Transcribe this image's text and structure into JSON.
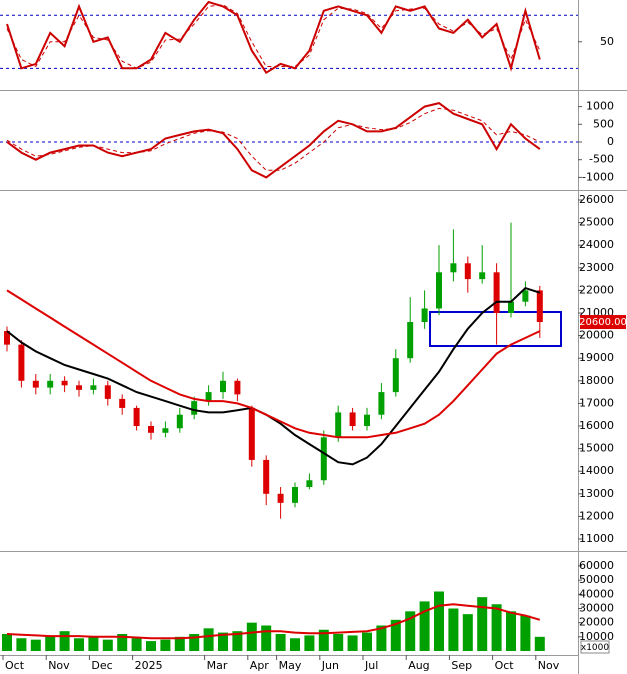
{
  "chart_data": [
    {
      "type": "line",
      "series": [
        {
          "color": "#cc0000",
          "style": "solid",
          "values": [
            70,
            20,
            25,
            60,
            45,
            90,
            50,
            55,
            20,
            20,
            30,
            60,
            50,
            75,
            95,
            90,
            80,
            40,
            15,
            25,
            20,
            40,
            85,
            90,
            85,
            80,
            60,
            90,
            85,
            90,
            65,
            60,
            75,
            55,
            70,
            20,
            85,
            30
          ]
        },
        {
          "color": "#cc0000",
          "style": "dashed",
          "values": [
            65,
            30,
            22,
            50,
            50,
            80,
            55,
            52,
            28,
            20,
            27,
            52,
            53,
            70,
            90,
            92,
            82,
            50,
            22,
            22,
            22,
            35,
            75,
            88,
            87,
            82,
            65,
            85,
            87,
            88,
            70,
            62,
            72,
            58,
            65,
            30,
            75,
            40
          ]
        }
      ],
      "ylim": [
        0,
        95
      ],
      "yticks": [
        50
      ],
      "levels": [
        80,
        20
      ]
    },
    {
      "type": "line",
      "series": [
        {
          "color": "#cc0000",
          "style": "solid",
          "values": [
            0,
            -300,
            -500,
            -300,
            -200,
            -100,
            -100,
            -300,
            -400,
            -300,
            -200,
            100,
            200,
            300,
            350,
            250,
            -200,
            -800,
            -1000,
            -700,
            -400,
            -100,
            300,
            600,
            500,
            300,
            300,
            400,
            700,
            1000,
            1100,
            800,
            650,
            500,
            -200,
            500,
            100,
            -200
          ]
        },
        {
          "color": "#cc0000",
          "style": "dashed",
          "values": [
            50,
            -200,
            -400,
            -350,
            -250,
            -150,
            -100,
            -200,
            -300,
            -300,
            -250,
            -50,
            100,
            250,
            320,
            280,
            100,
            -400,
            -800,
            -800,
            -600,
            -300,
            0,
            400,
            500,
            400,
            350,
            380,
            550,
            800,
            950,
            900,
            750,
            600,
            200,
            300,
            200,
            0
          ]
        }
      ],
      "ylim": [
        -1300,
        1300
      ],
      "yticks": [
        -1000,
        -500,
        0,
        500,
        1000
      ],
      "levels": [
        0
      ]
    },
    {
      "type": "candlestick",
      "open": [
        20200,
        19600,
        18000,
        17700,
        18000,
        17800,
        17600,
        17800,
        17200,
        16800,
        16000,
        15700,
        15900,
        16500,
        17100,
        17500,
        18000,
        16800,
        14500,
        13000,
        12600,
        13300,
        13600,
        15500,
        16600,
        16000,
        16500,
        17500,
        19000,
        20600,
        21200,
        22800,
        23200,
        22500,
        22800,
        21000,
        21500,
        22000
      ],
      "high": [
        20400,
        19800,
        18300,
        18300,
        18200,
        18000,
        18100,
        18000,
        17400,
        16900,
        16200,
        16200,
        16800,
        17300,
        17800,
        18400,
        18100,
        16900,
        14700,
        13300,
        13500,
        13900,
        15800,
        16900,
        16800,
        16800,
        17900,
        19400,
        21700,
        22000,
        24000,
        24700,
        23500,
        24000,
        23200,
        25000,
        22400,
        22200
      ],
      "low": [
        19300,
        17700,
        17400,
        17400,
        17500,
        17300,
        17400,
        16900,
        16500,
        15800,
        15400,
        15500,
        15700,
        16300,
        16900,
        17200,
        17100,
        14200,
        12500,
        11900,
        12400,
        13200,
        13400,
        15300,
        15800,
        15800,
        16300,
        17300,
        18800,
        20300,
        20900,
        22400,
        21900,
        22300,
        19600,
        20800,
        21300,
        19900
      ],
      "close": [
        19600,
        18000,
        17700,
        18000,
        17800,
        17600,
        17800,
        17200,
        16800,
        16000,
        15700,
        15900,
        16500,
        17100,
        17500,
        18000,
        17400,
        14500,
        13000,
        12600,
        13300,
        13600,
        15500,
        16600,
        16000,
        16500,
        17500,
        19000,
        20600,
        21200,
        22800,
        23200,
        22500,
        22800,
        21000,
        21500,
        22000,
        20600
      ],
      "up_color": "#00a000",
      "down_color": "#dd0000",
      "series": [
        {
          "color": "#000000",
          "values": [
            20200,
            19700,
            19300,
            19000,
            18700,
            18500,
            18300,
            18100,
            17800,
            17500,
            17300,
            17100,
            16900,
            16700,
            16600,
            16600,
            16700,
            16800,
            16500,
            16100,
            15600,
            15200,
            14800,
            14400,
            14300,
            14600,
            15200,
            16000,
            16800,
            17600,
            18400,
            19400,
            20300,
            21000,
            21500,
            21500,
            22100,
            21900
          ]
        },
        {
          "color": "#dd0000",
          "values": [
            22000,
            21600,
            21200,
            20800,
            20400,
            20000,
            19600,
            19200,
            18800,
            18400,
            18000,
            17700,
            17400,
            17200,
            17100,
            17100,
            17000,
            16800,
            16500,
            16200,
            15900,
            15700,
            15600,
            15500,
            15500,
            15500,
            15600,
            15700,
            15900,
            16100,
            16500,
            17100,
            17800,
            18500,
            19200,
            19600,
            19900,
            20200
          ]
        }
      ],
      "last_price": {
        "value": 20600,
        "label": "20600.00"
      },
      "ylim": [
        10700,
        26300
      ],
      "yticks": [
        11000,
        12000,
        13000,
        14000,
        15000,
        16000,
        17000,
        18000,
        19000,
        20000,
        21000,
        22000,
        23000,
        24000,
        25000,
        26000
      ]
    },
    {
      "type": "bar",
      "categories": [
        "Oct",
        null,
        null,
        "Nov",
        null,
        null,
        "Dec",
        null,
        null,
        "2025",
        null,
        null,
        null,
        null,
        "Mar",
        null,
        null,
        "Apr",
        null,
        "May",
        null,
        null,
        "Jun",
        null,
        null,
        "Jul",
        null,
        null,
        "Aug",
        null,
        null,
        "Sep",
        null,
        null,
        "Oct",
        null,
        null,
        "Nov"
      ],
      "values": [
        12000,
        9000,
        8000,
        11000,
        14000,
        9000,
        10000,
        8000,
        12000,
        9000,
        7000,
        8000,
        10000,
        12000,
        16000,
        13000,
        14000,
        20000,
        18000,
        12000,
        9000,
        11000,
        15000,
        12000,
        11000,
        13000,
        18000,
        22000,
        28000,
        35000,
        42000,
        30000,
        26000,
        38000,
        33000,
        28000,
        25000,
        10000
      ],
      "color": "#00a000",
      "series": [
        {
          "color": "#dd0000",
          "values": [
            12000,
            11500,
            11000,
            10500,
            10500,
            10500,
            10000,
            10000,
            10000,
            9500,
            9000,
            9000,
            9000,
            9500,
            10500,
            11500,
            12000,
            13000,
            14000,
            14000,
            13000,
            12500,
            12500,
            13000,
            13500,
            14000,
            16000,
            19000,
            23000,
            28000,
            32000,
            33000,
            32000,
            31000,
            30000,
            27000,
            25000,
            22000
          ]
        }
      ],
      "unit_label": "x1000",
      "ylim": [
        0,
        65000
      ],
      "yticks": [
        10000,
        20000,
        30000,
        40000,
        50000,
        60000
      ]
    }
  ]
}
